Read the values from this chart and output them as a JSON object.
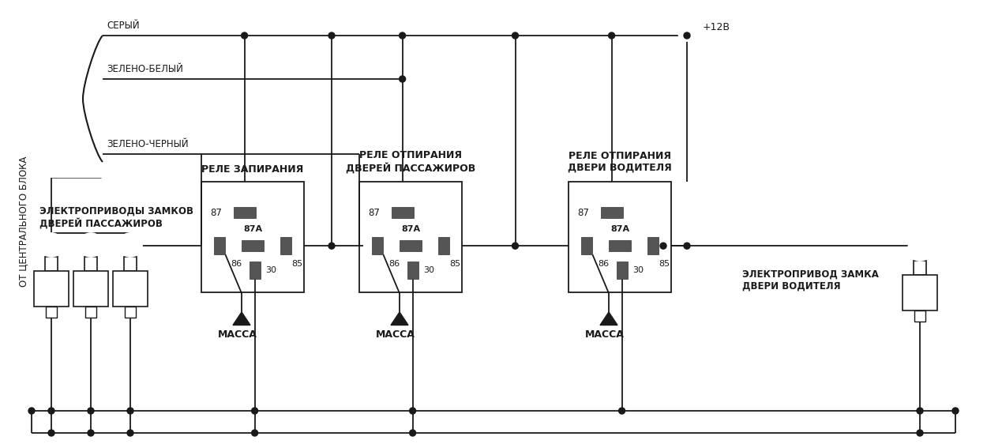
{
  "bg_color": "#ffffff",
  "lc": "#1a1a1a",
  "relay1_label": "РЕЛЕ ЗАПИРАНИЯ",
  "relay2_label": "РЕЛЕ ОТПИРАНИЯ\nДВЕРЕЙ ПАССАЖИРОВ",
  "relay3_label": "РЕЛЕ ОТПИРАНИЯ\nДВЕРИ ВОДИТЕЛЯ",
  "wire1_label": "СЕРЫЙ",
  "wire2_label": "ЗЕЛЕНО-БЕЛЫЙ",
  "wire3_label": "ЗЕЛЕНО-ЧЕРНЫЙ",
  "left_label": "ОТ ЦЕНТРАЛЬНОГО БЛОКА",
  "bottom_left_label": "ЭЛЕКТРОПРИВОДЫ ЗАМКОВ\nДВЕРЕЙ ПАССАЖИРОВ",
  "bottom_right_label": "ЭЛЕКТРОПРИВОД ЗАМКА\nДВЕРИ ВОДИТЕЛЯ",
  "massa_label": "МАССА",
  "plus12v_label": "+12В",
  "figw": 12.5,
  "figh": 5.62,
  "dpi": 100
}
